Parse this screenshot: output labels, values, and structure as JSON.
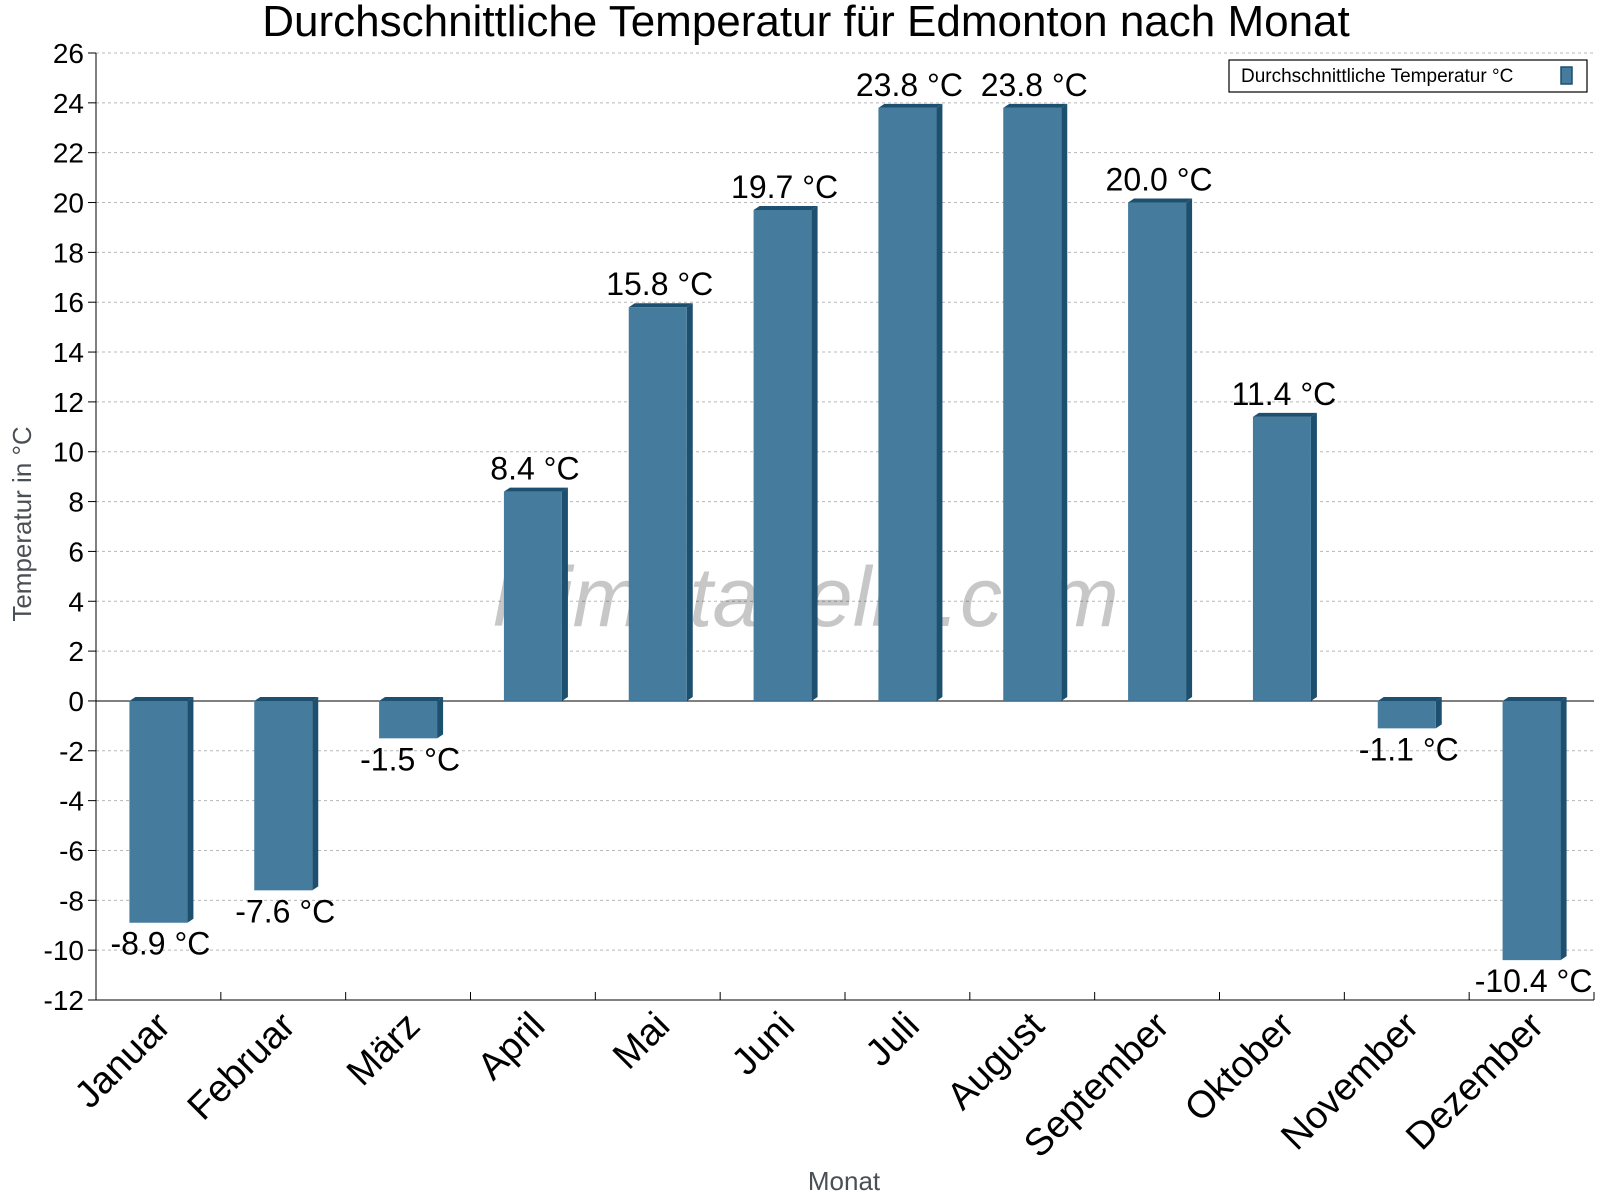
{
  "chart_data": {
    "type": "bar",
    "title": "Durchschnittliche Temperatur für Edmonton nach Monat",
    "xlabel": "Monat",
    "ylabel": "Temperatur in °C",
    "categories": [
      "Januar",
      "Februar",
      "März",
      "April",
      "Mai",
      "Juni",
      "Juli",
      "August",
      "September",
      "Oktober",
      "November",
      "Dezember"
    ],
    "series": [
      {
        "name": "Durchschnittliche Temperatur °C",
        "values": [
          -8.9,
          -7.6,
          -1.5,
          8.4,
          15.8,
          19.7,
          23.8,
          23.8,
          20.0,
          11.4,
          -1.1,
          -10.4
        ],
        "labels": [
          "-8.9 °C",
          "-7.6 °C",
          "-1.5 °C",
          "8.4 °C",
          "15.8 °C",
          "19.7 °C",
          "23.8 °C",
          "23.8 °C",
          "20.0 °C",
          "11.4 °C",
          "-1.1 °C",
          "-10.4 °C"
        ]
      }
    ],
    "yticks": [
      "26",
      "24",
      "22",
      "20",
      "18",
      "16",
      "14",
      "12",
      "10",
      "8",
      "6",
      "4",
      "2",
      "0",
      "-2",
      "-4",
      "-6",
      "-8",
      "-10",
      "-12"
    ],
    "ylim": [
      -12,
      26
    ],
    "grid": true,
    "legend_position": "top-right",
    "bar_color": "#457b9d",
    "bar_side_color": "#1d4f6e",
    "watermark": "klimatabelle.com"
  }
}
